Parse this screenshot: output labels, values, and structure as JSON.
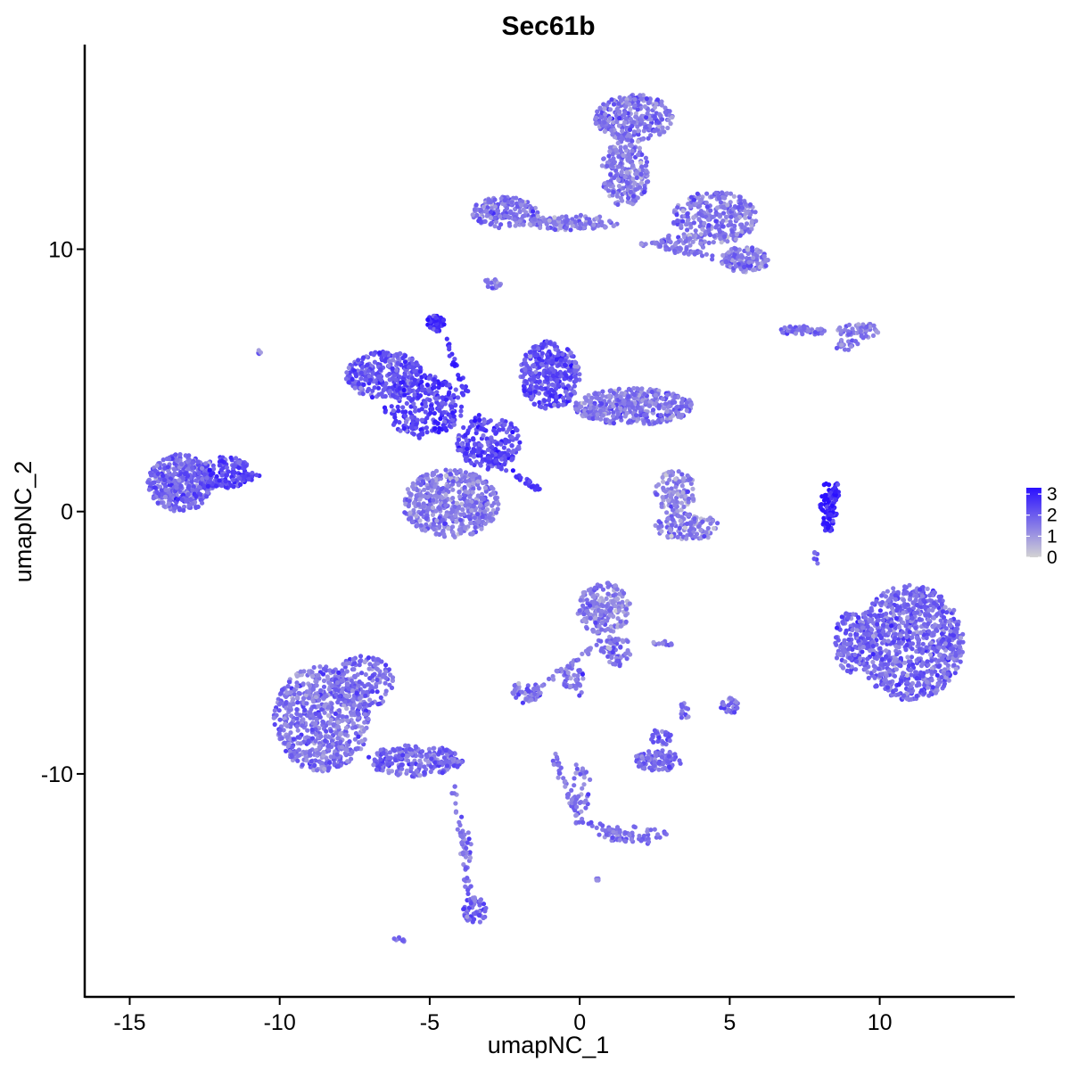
{
  "chart_data": {
    "type": "scatter",
    "title": "Sec61b",
    "xlabel": "umapNC_1",
    "ylabel": "umapNC_2",
    "xlim": [
      -16.5,
      14.5
    ],
    "ylim": [
      -18.5,
      17.8
    ],
    "x_ticks": [
      -15,
      -10,
      -5,
      0,
      5,
      10
    ],
    "y_ticks": [
      -10,
      0,
      10
    ],
    "x_tick_labels": [
      "-15",
      "-10",
      "-5",
      "0",
      "5",
      "10"
    ],
    "y_tick_labels": [
      "-10",
      "0",
      "10"
    ],
    "grid": false,
    "legend": {
      "placement": "right",
      "type": "colorbar",
      "labels": [
        "3",
        "2",
        "1",
        "0"
      ],
      "values": [
        3,
        2,
        1,
        0
      ],
      "range": [
        0,
        3.3
      ]
    },
    "color_scale": {
      "low": "#d3d3d3",
      "high": "#2a10ff"
    },
    "clusters": [
      {
        "cx": -13.3,
        "cy": 1.1,
        "rx": 1.1,
        "ry": 1.1,
        "n": 420,
        "expr": 1.8
      },
      {
        "cx": -11.8,
        "cy": 1.5,
        "rx": 0.9,
        "ry": 0.6,
        "n": 150,
        "expr": 2.3
      },
      {
        "cx": -6.5,
        "cy": 5.2,
        "rx": 1.3,
        "ry": 0.9,
        "n": 300,
        "expr": 2.1
      },
      {
        "cx": -5.2,
        "cy": 4.0,
        "rx": 1.3,
        "ry": 1.2,
        "n": 260,
        "expr": 2.4
      },
      {
        "cx": -4.8,
        "cy": 7.2,
        "rx": 0.3,
        "ry": 0.3,
        "n": 45,
        "expr": 2.8
      },
      {
        "cx": -3.0,
        "cy": 2.6,
        "rx": 1.1,
        "ry": 1.0,
        "n": 200,
        "expr": 2.2
      },
      {
        "cx": -4.3,
        "cy": 0.3,
        "rx": 1.6,
        "ry": 1.3,
        "n": 520,
        "expr": 1.5
      },
      {
        "cx": -1.0,
        "cy": 5.2,
        "rx": 1.0,
        "ry": 1.3,
        "n": 340,
        "expr": 2.2
      },
      {
        "cx": 1.8,
        "cy": 4.0,
        "rx": 2.0,
        "ry": 0.7,
        "n": 420,
        "expr": 1.6
      },
      {
        "cx": -2.5,
        "cy": 11.4,
        "rx": 1.1,
        "ry": 0.6,
        "n": 170,
        "expr": 1.6
      },
      {
        "cx": 1.8,
        "cy": 15.0,
        "rx": 1.3,
        "ry": 0.9,
        "n": 280,
        "expr": 1.6
      },
      {
        "cx": 1.5,
        "cy": 12.9,
        "rx": 0.8,
        "ry": 1.3,
        "n": 220,
        "expr": 1.5
      },
      {
        "cx": 4.5,
        "cy": 11.2,
        "rx": 1.4,
        "ry": 1.0,
        "n": 280,
        "expr": 1.5
      },
      {
        "cx": 5.5,
        "cy": 9.6,
        "rx": 0.8,
        "ry": 0.5,
        "n": 130,
        "expr": 1.6
      },
      {
        "cx": -0.2,
        "cy": 11.0,
        "rx": 1.5,
        "ry": 0.3,
        "n": 90,
        "expr": 1.5
      },
      {
        "cx": 3.3,
        "cy": 10.2,
        "rx": 0.9,
        "ry": 0.4,
        "n": 60,
        "expr": 1.6
      },
      {
        "cx": -2.9,
        "cy": 8.7,
        "rx": 0.3,
        "ry": 0.2,
        "n": 20,
        "expr": 1.5
      },
      {
        "cx": 7.5,
        "cy": 6.9,
        "rx": 0.8,
        "ry": 0.2,
        "n": 50,
        "expr": 1.7
      },
      {
        "cx": 9.3,
        "cy": 6.9,
        "rx": 0.7,
        "ry": 0.3,
        "n": 60,
        "expr": 1.5
      },
      {
        "cx": 8.9,
        "cy": 6.3,
        "rx": 0.4,
        "ry": 0.3,
        "n": 20,
        "expr": 1.5
      },
      {
        "cx": 3.2,
        "cy": 0.7,
        "rx": 0.7,
        "ry": 0.9,
        "n": 110,
        "expr": 1.2
      },
      {
        "cx": 3.6,
        "cy": -0.6,
        "rx": 1.1,
        "ry": 0.5,
        "n": 110,
        "expr": 1.4
      },
      {
        "cx": 8.3,
        "cy": 0.2,
        "rx": 0.3,
        "ry": 1.0,
        "n": 70,
        "expr": 3.0
      },
      {
        "cx": 11.0,
        "cy": -5.0,
        "rx": 1.8,
        "ry": 2.2,
        "n": 900,
        "expr": 1.8
      },
      {
        "cx": 9.0,
        "cy": -5.0,
        "rx": 0.5,
        "ry": 1.2,
        "n": 120,
        "expr": 1.9
      },
      {
        "cx": 0.8,
        "cy": -3.7,
        "rx": 0.9,
        "ry": 1.0,
        "n": 200,
        "expr": 1.4
      },
      {
        "cx": 1.2,
        "cy": -5.3,
        "rx": 0.5,
        "ry": 0.6,
        "n": 60,
        "expr": 1.6
      },
      {
        "cx": -0.2,
        "cy": -6.4,
        "rx": 0.4,
        "ry": 0.7,
        "n": 40,
        "expr": 1.6
      },
      {
        "cx": -1.8,
        "cy": -6.9,
        "rx": 0.5,
        "ry": 0.4,
        "n": 60,
        "expr": 1.6
      },
      {
        "cx": -8.6,
        "cy": -7.9,
        "rx": 1.6,
        "ry": 2.0,
        "n": 700,
        "expr": 1.6
      },
      {
        "cx": -5.5,
        "cy": -9.5,
        "rx": 1.6,
        "ry": 0.6,
        "n": 240,
        "expr": 1.8
      },
      {
        "cx": -7.2,
        "cy": -6.5,
        "rx": 1.0,
        "ry": 1.0,
        "n": 150,
        "expr": 1.7
      },
      {
        "cx": -3.5,
        "cy": -15.2,
        "rx": 0.4,
        "ry": 0.5,
        "n": 50,
        "expr": 1.9
      },
      {
        "cx": -3.8,
        "cy": -13.2,
        "rx": 0.2,
        "ry": 1.2,
        "n": 25,
        "expr": 1.6
      },
      {
        "cx": 2.6,
        "cy": -9.5,
        "rx": 0.8,
        "ry": 0.4,
        "n": 110,
        "expr": 1.8
      },
      {
        "cx": 2.7,
        "cy": -8.6,
        "rx": 0.4,
        "ry": 0.3,
        "n": 30,
        "expr": 2.0
      },
      {
        "cx": 0.0,
        "cy": -10.8,
        "rx": 0.4,
        "ry": 1.2,
        "n": 40,
        "expr": 1.6
      },
      {
        "cx": 1.7,
        "cy": -12.3,
        "rx": 1.2,
        "ry": 0.3,
        "n": 55,
        "expr": 1.7
      },
      {
        "cx": 5.0,
        "cy": -7.4,
        "rx": 0.3,
        "ry": 0.3,
        "n": 30,
        "expr": 1.8
      },
      {
        "cx": 3.5,
        "cy": -7.6,
        "rx": 0.2,
        "ry": 0.3,
        "n": 15,
        "expr": 1.7
      },
      {
        "cx": 2.8,
        "cy": -5.0,
        "rx": 0.4,
        "ry": 0.1,
        "n": 12,
        "expr": 1.5
      },
      {
        "cx": -6.0,
        "cy": -16.3,
        "rx": 0.2,
        "ry": 0.15,
        "n": 8,
        "expr": 1.8
      },
      {
        "cx": -10.7,
        "cy": 6.1,
        "rx": 0.1,
        "ry": 0.1,
        "n": 4,
        "expr": 1.6
      },
      {
        "cx": 0.6,
        "cy": -14.0,
        "rx": 0.1,
        "ry": 0.1,
        "n": 4,
        "expr": 1.6
      }
    ],
    "arms": [
      {
        "x1": -4.7,
        "y1": 7.0,
        "x2": -3.2,
        "y2": 3.0,
        "n": 40,
        "expr": 2.7
      },
      {
        "x1": -3.4,
        "y1": 2.3,
        "x2": -1.3,
        "y2": 0.8,
        "n": 45,
        "expr": 2.6
      },
      {
        "x1": -12.5,
        "y1": 1.0,
        "x2": -10.7,
        "y2": 1.4,
        "n": 30,
        "expr": 2.5
      },
      {
        "x1": -3.2,
        "y1": 11.3,
        "x2": 0.8,
        "y2": 10.9,
        "n": 40,
        "expr": 1.5
      },
      {
        "x1": 2.0,
        "y1": 10.2,
        "x2": 4.5,
        "y2": 9.7,
        "n": 30,
        "expr": 1.6
      },
      {
        "x1": 0.7,
        "y1": -5.0,
        "x2": -1.5,
        "y2": -6.8,
        "n": 35,
        "expr": 1.5
      },
      {
        "x1": -4.2,
        "y1": -10.5,
        "x2": -3.6,
        "y2": -15.0,
        "n": 35,
        "expr": 1.7
      },
      {
        "x1": -0.9,
        "y1": -9.3,
        "x2": 0.0,
        "y2": -11.8,
        "n": 30,
        "expr": 1.6
      },
      {
        "x1": 0.0,
        "y1": -11.8,
        "x2": 2.5,
        "y2": -12.6,
        "n": 30,
        "expr": 1.7
      },
      {
        "x1": 8.6,
        "y1": 1.1,
        "x2": 8.2,
        "y2": -0.9,
        "n": 30,
        "expr": 3.0
      },
      {
        "x1": 7.8,
        "y1": -1.2,
        "x2": 7.9,
        "y2": -2.1,
        "n": 6,
        "expr": 1.8
      }
    ]
  }
}
